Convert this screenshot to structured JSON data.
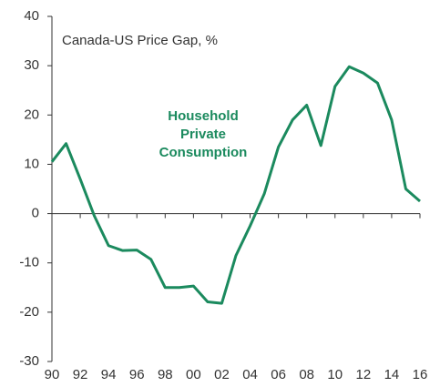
{
  "chart_data": {
    "type": "line",
    "annotation": "Canada-US Price Gap, %",
    "x": [
      1990,
      1991,
      1992,
      1993,
      1994,
      1995,
      1996,
      1997,
      1998,
      1999,
      2000,
      2001,
      2002,
      2003,
      2004,
      2005,
      2006,
      2007,
      2008,
      2009,
      2010,
      2011,
      2012,
      2013,
      2014,
      2015,
      2016
    ],
    "series": [
      {
        "name": "Household Private Consumption",
        "color": "#1b8a5e",
        "values": [
          10.5,
          14.2,
          7,
          -0.5,
          -6.5,
          -7.5,
          -7.4,
          -9.3,
          -15,
          -15,
          -14.7,
          -17.9,
          -18.2,
          -8.5,
          -2.5,
          4,
          13.5,
          19,
          22,
          13.8,
          25.8,
          29.8,
          28.5,
          26.5,
          19,
          5,
          2.5
        ]
      }
    ],
    "xlim": [
      1990,
      2016
    ],
    "xticks": [
      {
        "value": 1990,
        "label": "90"
      },
      {
        "value": 1992,
        "label": "92"
      },
      {
        "value": 1994,
        "label": "94"
      },
      {
        "value": 1996,
        "label": "96"
      },
      {
        "value": 1998,
        "label": "98"
      },
      {
        "value": 2000,
        "label": "00"
      },
      {
        "value": 2002,
        "label": "02"
      },
      {
        "value": 2004,
        "label": "04"
      },
      {
        "value": 2006,
        "label": "06"
      },
      {
        "value": 2008,
        "label": "08"
      },
      {
        "value": 2010,
        "label": "10"
      },
      {
        "value": 2012,
        "label": "12"
      },
      {
        "value": 2014,
        "label": "14"
      },
      {
        "value": 2016,
        "label": "16"
      }
    ],
    "ylim": [
      -30,
      40
    ],
    "yticks": [
      -30,
      -20,
      -10,
      0,
      10,
      20,
      30,
      40
    ],
    "grid": false
  }
}
